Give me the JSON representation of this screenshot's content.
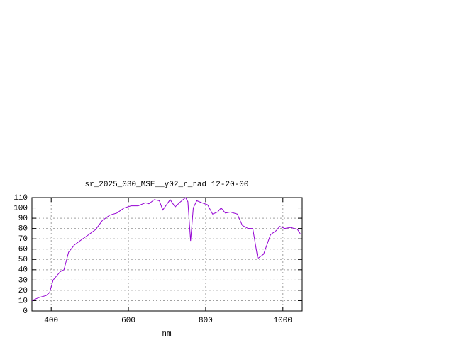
{
  "chart_data": {
    "type": "line",
    "title": "sr_2025_030_MSE__y02_r_rad 12-20-00",
    "x_label": "nm",
    "x": [
      350,
      368,
      387,
      396,
      405,
      423,
      433,
      445,
      460,
      478,
      497,
      515,
      533,
      552,
      570,
      589,
      607,
      625,
      644,
      653,
      667,
      680,
      689,
      708,
      721,
      735,
      748,
      754,
      761,
      768,
      777,
      790,
      805,
      818,
      831,
      840,
      851,
      864,
      882,
      895,
      910,
      922,
      935,
      950,
      968,
      983,
      992,
      1005,
      1020,
      1038,
      1045
    ],
    "series": [
      {
        "color": "#9400d3",
        "values": [
          10,
          13,
          15,
          18,
          30,
          38,
          40,
          57,
          64,
          69,
          74,
          79,
          88,
          93,
          95,
          100,
          102,
          102,
          105,
          104,
          108,
          107,
          98,
          108,
          101,
          106,
          110,
          106,
          68,
          100,
          107,
          105,
          103,
          94,
          96,
          100,
          95,
          96,
          94,
          83,
          80,
          80,
          51,
          55,
          74,
          78,
          82,
          80,
          81,
          79,
          75
        ]
      }
    ],
    "xlim": [
      350,
      1050
    ],
    "ylim": [
      0,
      110
    ],
    "xticks": [
      400,
      600,
      800,
      1000
    ],
    "yticks": [
      0,
      10,
      20,
      30,
      40,
      50,
      60,
      70,
      80,
      90,
      100,
      110
    ],
    "grid": true
  }
}
